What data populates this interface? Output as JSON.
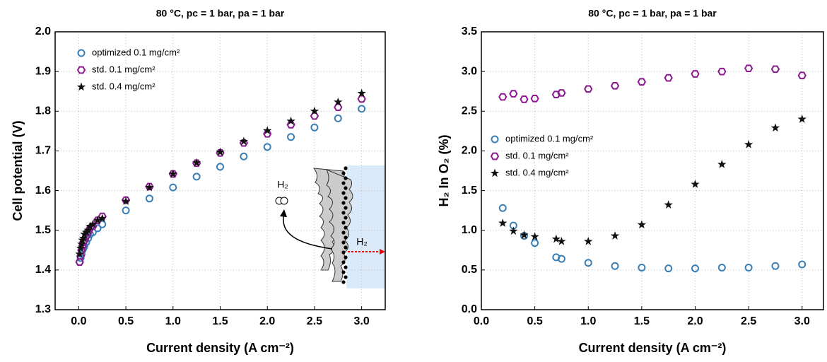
{
  "chart_data": [
    {
      "type": "scatter",
      "title": "80 °C, pc = 1 bar, pa = 1 bar",
      "x_label": "Current density (A cm⁻²)",
      "y_label": "Cell potential (V)",
      "xlim": [
        -0.25,
        3.25
      ],
      "ylim": [
        1.3,
        2.0
      ],
      "xticks": [
        {
          "value": 0,
          "label": "0.0"
        },
        0.5,
        {
          "value": 1,
          "label": "1.0"
        },
        1.5,
        {
          "value": 2,
          "label": "2.0"
        },
        2.5,
        {
          "value": 3,
          "label": "3.0"
        }
      ],
      "yticks": [
        1.3,
        1.4,
        1.5,
        1.6,
        1.7,
        1.8,
        1.9,
        {
          "value": 2,
          "label": "2.0"
        }
      ],
      "grid": true,
      "legend": "upper left",
      "annotations": [
        "H₂",
        "H₂"
      ],
      "x": [
        0.01,
        0.02,
        0.03,
        0.04,
        0.05,
        0.06,
        0.08,
        0.1,
        0.12,
        0.15,
        0.2,
        0.25,
        0.5,
        0.75,
        1.0,
        1.25,
        1.5,
        1.75,
        2.0,
        2.25,
        2.5,
        2.75,
        3.0
      ],
      "series": [
        {
          "name": "optimized 0.1 mg/cm²",
          "color": "#3a7fb5",
          "marker": "circle",
          "values": [
            1.42,
            1.43,
            1.44,
            1.45,
            1.455,
            1.46,
            1.47,
            1.48,
            1.49,
            1.495,
            1.505,
            1.515,
            1.55,
            1.58,
            1.608,
            1.635,
            1.66,
            1.686,
            1.71,
            1.735,
            1.759,
            1.782,
            1.806
          ]
        },
        {
          "name": "std. 0.1 mg/cm²",
          "color": "#8b1a8f",
          "marker": "hexagon",
          "values": [
            1.42,
            1.435,
            1.45,
            1.46,
            1.47,
            1.475,
            1.485,
            1.495,
            1.505,
            1.51,
            1.525,
            1.535,
            1.576,
            1.61,
            1.642,
            1.669,
            1.695,
            1.72,
            1.743,
            1.766,
            1.788,
            1.81,
            1.831
          ]
        },
        {
          "name": "std. 0.4 mg/cm²",
          "color": "#111111",
          "marker": "star",
          "values": [
            1.44,
            1.455,
            1.465,
            1.475,
            1.48,
            1.49,
            1.495,
            1.5,
            1.51,
            1.515,
            1.525,
            1.53,
            1.573,
            1.608,
            1.642,
            1.67,
            1.697,
            1.724,
            1.751,
            1.775,
            1.8,
            1.823,
            1.845
          ]
        }
      ]
    },
    {
      "type": "scatter",
      "title": "80 °C, pc = 1 bar, pa = 1 bar",
      "x_label": "Current density (A cm⁻²)",
      "y_label": "H₂ In O₂ (%)",
      "xlim": [
        0,
        3.2
      ],
      "ylim": [
        0,
        3.5
      ],
      "xticks": [
        {
          "value": 0,
          "label": "0.0"
        },
        0.5,
        {
          "value": 1,
          "label": "1.0"
        },
        1.5,
        {
          "value": 2,
          "label": "2.0"
        },
        2.5,
        {
          "value": 3,
          "label": "3.0"
        }
      ],
      "yticks": [
        {
          "value": 0,
          "label": "0.0"
        },
        0.5,
        {
          "value": 1,
          "label": "1.0"
        },
        1.5,
        {
          "value": 2,
          "label": "2.0"
        },
        2.5,
        {
          "value": 3,
          "label": "3.0"
        },
        3.5
      ],
      "grid": true,
      "legend": "center left",
      "x": [
        0.2,
        0.3,
        0.4,
        0.5,
        0.7,
        0.75,
        1.0,
        1.25,
        1.5,
        1.75,
        2.0,
        2.25,
        2.5,
        2.75,
        3.0
      ],
      "series": [
        {
          "name": "optimized 0.1 mg/cm²",
          "color": "#3a7fb5",
          "marker": "circle",
          "values": [
            1.28,
            1.06,
            0.93,
            0.84,
            0.66,
            0.64,
            0.59,
            0.55,
            0.53,
            0.52,
            0.52,
            0.53,
            0.53,
            0.55,
            0.57
          ]
        },
        {
          "name": "std. 0.1 mg/cm²",
          "color": "#8b1a8f",
          "marker": "hexagon",
          "values": [
            2.68,
            2.72,
            2.65,
            2.66,
            2.71,
            2.73,
            2.78,
            2.82,
            2.87,
            2.92,
            2.97,
            3.0,
            3.04,
            3.03,
            2.95
          ]
        },
        {
          "name": "std. 0.4 mg/cm²",
          "color": "#111111",
          "marker": "star",
          "values": [
            1.09,
            0.99,
            0.94,
            0.92,
            0.89,
            0.86,
            0.86,
            0.93,
            1.07,
            1.32,
            1.58,
            1.83,
            2.08,
            2.29,
            2.4
          ]
        }
      ]
    }
  ]
}
